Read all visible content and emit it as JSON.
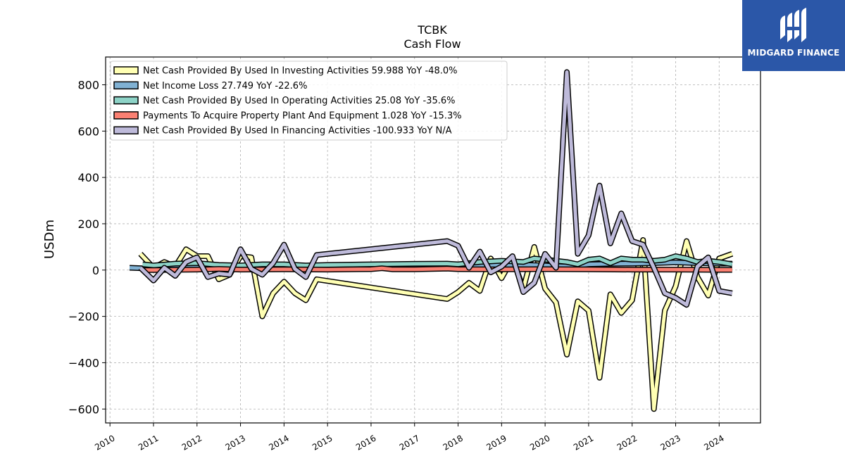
{
  "chart_data": {
    "type": "line",
    "title": "TCBK",
    "subtitle": "Cash Flow",
    "ylabel": "USDm",
    "xlabel": "",
    "ylim": [
      -660,
      920
    ],
    "xlim": [
      2009.9,
      2024.95
    ],
    "yticks": [
      800,
      600,
      400,
      200,
      0,
      -200,
      -400,
      -600
    ],
    "ytick_labels": [
      "800",
      "600",
      "400",
      "200",
      "0",
      "−200",
      "−400",
      "−600"
    ],
    "xticks": [
      2010,
      2011,
      2012,
      2013,
      2014,
      2015,
      2016,
      2017,
      2018,
      2019,
      2020,
      2021,
      2022,
      2023,
      2024
    ],
    "grid": true,
    "legend_position": "top-left",
    "series": [
      {
        "name": "Net Cash Provided By Used In Investing Activities  59.988 YoY -48.0%",
        "color": "#ffffb3",
        "points": [
          [
            2010.7,
            70
          ],
          [
            2011.0,
            10
          ],
          [
            2011.25,
            35
          ],
          [
            2011.5,
            15
          ],
          [
            2011.75,
            90
          ],
          [
            2012.0,
            60
          ],
          [
            2012.25,
            60
          ],
          [
            2012.5,
            -40
          ],
          [
            2012.75,
            -20
          ],
          [
            2013.0,
            60
          ],
          [
            2013.25,
            55
          ],
          [
            2013.5,
            -200
          ],
          [
            2013.75,
            -100
          ],
          [
            2014.0,
            -50
          ],
          [
            2014.25,
            -100
          ],
          [
            2014.5,
            -130
          ],
          [
            2014.75,
            -40
          ],
          [
            2017.75,
            -125
          ],
          [
            2018.0,
            -95
          ],
          [
            2018.25,
            -55
          ],
          [
            2018.5,
            -90
          ],
          [
            2018.75,
            50
          ],
          [
            2019.0,
            -35
          ],
          [
            2019.25,
            50
          ],
          [
            2019.5,
            -80
          ],
          [
            2019.75,
            100
          ],
          [
            2020.0,
            -80
          ],
          [
            2020.25,
            -140
          ],
          [
            2020.5,
            -365
          ],
          [
            2020.75,
            -135
          ],
          [
            2021.0,
            -175
          ],
          [
            2021.25,
            -465
          ],
          [
            2021.5,
            -105
          ],
          [
            2021.75,
            -185
          ],
          [
            2022.0,
            -130
          ],
          [
            2022.25,
            130
          ],
          [
            2022.5,
            -600
          ],
          [
            2022.75,
            -175
          ],
          [
            2023.0,
            -70
          ],
          [
            2023.25,
            125
          ],
          [
            2023.5,
            -30
          ],
          [
            2023.75,
            -110
          ],
          [
            2024.0,
            50
          ],
          [
            2024.3,
            70
          ]
        ]
      },
      {
        "name": "Net Income Loss  27.749 YoY -22.6%",
        "color": "#80b1d3",
        "points": [
          [
            2010.45,
            10
          ],
          [
            2010.75,
            8
          ],
          [
            2011.0,
            10
          ],
          [
            2012.0,
            10
          ],
          [
            2013.0,
            12
          ],
          [
            2014.0,
            12
          ],
          [
            2015.0,
            12
          ],
          [
            2016.0,
            13
          ],
          [
            2017.0,
            14
          ],
          [
            2017.75,
            16
          ],
          [
            2018.0,
            18
          ],
          [
            2018.5,
            20
          ],
          [
            2019.0,
            22
          ],
          [
            2019.5,
            23
          ],
          [
            2020.0,
            20
          ],
          [
            2020.5,
            15
          ],
          [
            2021.0,
            25
          ],
          [
            2021.5,
            27
          ],
          [
            2022.0,
            28
          ],
          [
            2022.5,
            30
          ],
          [
            2023.0,
            33
          ],
          [
            2023.5,
            30
          ],
          [
            2024.0,
            28
          ],
          [
            2024.3,
            28
          ]
        ]
      },
      {
        "name": "Net Cash Provided By Used In Operating Activities  25.08 YoY -35.6%",
        "color": "#8dd3c7",
        "points": [
          [
            2010.75,
            25
          ],
          [
            2011.0,
            20
          ],
          [
            2011.5,
            28
          ],
          [
            2012.0,
            30
          ],
          [
            2012.5,
            22
          ],
          [
            2013.0,
            20
          ],
          [
            2013.5,
            25
          ],
          [
            2014.0,
            25
          ],
          [
            2014.5,
            20
          ],
          [
            2015.0,
            22
          ],
          [
            2016.0,
            25
          ],
          [
            2017.0,
            27
          ],
          [
            2017.75,
            28
          ],
          [
            2018.0,
            25
          ],
          [
            2018.5,
            35
          ],
          [
            2019.0,
            40
          ],
          [
            2019.5,
            35
          ],
          [
            2019.75,
            50
          ],
          [
            2020.0,
            45
          ],
          [
            2020.25,
            40
          ],
          [
            2020.5,
            35
          ],
          [
            2020.75,
            25
          ],
          [
            2021.0,
            45
          ],
          [
            2021.25,
            50
          ],
          [
            2021.5,
            30
          ],
          [
            2021.75,
            50
          ],
          [
            2022.0,
            45
          ],
          [
            2022.25,
            45
          ],
          [
            2022.5,
            40
          ],
          [
            2022.75,
            45
          ],
          [
            2023.0,
            60
          ],
          [
            2023.25,
            50
          ],
          [
            2023.5,
            35
          ],
          [
            2023.75,
            40
          ],
          [
            2024.0,
            35
          ],
          [
            2024.3,
            25
          ]
        ]
      },
      {
        "name": "Payments To Acquire Property Plant And Equipment  1.028 YoY -15.3%",
        "color": "#fb8072",
        "points": [
          [
            2010.75,
            0
          ],
          [
            2011.0,
            0
          ],
          [
            2012.0,
            2
          ],
          [
            2012.5,
            5
          ],
          [
            2013.0,
            2
          ],
          [
            2014.0,
            3
          ],
          [
            2015.0,
            2
          ],
          [
            2016.0,
            4
          ],
          [
            2016.25,
            8
          ],
          [
            2016.5,
            3
          ],
          [
            2017.0,
            3
          ],
          [
            2017.75,
            6
          ],
          [
            2018.0,
            4
          ],
          [
            2019.0,
            3
          ],
          [
            2020.0,
            4
          ],
          [
            2021.0,
            3
          ],
          [
            2022.0,
            2
          ],
          [
            2023.0,
            2
          ],
          [
            2024.0,
            1
          ],
          [
            2024.3,
            1
          ]
        ]
      },
      {
        "name": "Net Cash Provided By Used In Financing Activities  -100.933 YoY N/A",
        "color": "#bebada",
        "points": [
          [
            2010.7,
            10
          ],
          [
            2011.0,
            -45
          ],
          [
            2011.25,
            10
          ],
          [
            2011.5,
            -25
          ],
          [
            2011.75,
            35
          ],
          [
            2012.0,
            55
          ],
          [
            2012.25,
            -30
          ],
          [
            2012.5,
            -15
          ],
          [
            2012.75,
            -20
          ],
          [
            2013.0,
            90
          ],
          [
            2013.25,
            5
          ],
          [
            2013.5,
            -20
          ],
          [
            2013.75,
            30
          ],
          [
            2014.0,
            110
          ],
          [
            2014.25,
            5
          ],
          [
            2014.5,
            -30
          ],
          [
            2014.75,
            65
          ],
          [
            2017.75,
            125
          ],
          [
            2018.0,
            105
          ],
          [
            2018.25,
            10
          ],
          [
            2018.5,
            80
          ],
          [
            2018.75,
            -10
          ],
          [
            2019.0,
            15
          ],
          [
            2019.25,
            60
          ],
          [
            2019.5,
            -95
          ],
          [
            2019.75,
            -55
          ],
          [
            2020.0,
            70
          ],
          [
            2020.25,
            10
          ],
          [
            2020.5,
            855
          ],
          [
            2020.75,
            70
          ],
          [
            2021.0,
            150
          ],
          [
            2021.25,
            365
          ],
          [
            2021.5,
            115
          ],
          [
            2021.75,
            245
          ],
          [
            2022.0,
            125
          ],
          [
            2022.25,
            110
          ],
          [
            2022.5,
            10
          ],
          [
            2022.75,
            -100
          ],
          [
            2023.0,
            -120
          ],
          [
            2023.25,
            -150
          ],
          [
            2023.5,
            15
          ],
          [
            2023.75,
            55
          ],
          [
            2024.0,
            -90
          ],
          [
            2024.3,
            -100
          ]
        ]
      }
    ]
  },
  "branding": {
    "logo_text": "MIDGARD FINANCE",
    "logo_color": "#2b57a8"
  }
}
